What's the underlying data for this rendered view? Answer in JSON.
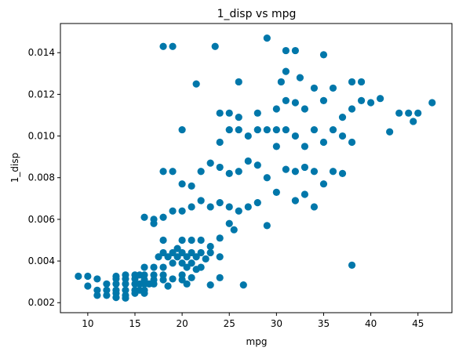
{
  "chart_data": {
    "type": "scatter",
    "title": "1_disp vs mpg",
    "xlabel": "mpg",
    "ylabel": "1_disp",
    "xlim": [
      7.1,
      48.6
    ],
    "ylim": [
      0.00152,
      0.0154
    ],
    "xticks": [
      10,
      15,
      20,
      25,
      30,
      35,
      40,
      45
    ],
    "xtick_labels": [
      "10",
      "15",
      "20",
      "25",
      "30",
      "35",
      "40",
      "45"
    ],
    "yticks": [
      0.002,
      0.004,
      0.006,
      0.008,
      0.01,
      0.012,
      0.014
    ],
    "ytick_labels": [
      "0.002",
      "0.004",
      "0.006",
      "0.008",
      "0.010",
      "0.012",
      "0.014"
    ],
    "grid": false,
    "marker_color": "#0077aa",
    "points": [
      [
        9.0,
        0.00327
      ],
      [
        10.0,
        0.00327
      ],
      [
        10.0,
        0.0028
      ],
      [
        11.0,
        0.00314
      ],
      [
        11.0,
        0.0026
      ],
      [
        11.0,
        0.00235
      ],
      [
        12.0,
        0.0029
      ],
      [
        12.0,
        0.0026
      ],
      [
        12.0,
        0.00235
      ],
      [
        13.0,
        0.00327
      ],
      [
        13.0,
        0.00314
      ],
      [
        13.0,
        0.0029
      ],
      [
        13.0,
        0.0026
      ],
      [
        13.0,
        0.00245
      ],
      [
        13.0,
        0.00225
      ],
      [
        14.0,
        0.00333
      ],
      [
        14.0,
        0.00314
      ],
      [
        14.0,
        0.0029
      ],
      [
        14.0,
        0.0026
      ],
      [
        14.0,
        0.00235
      ],
      [
        14.0,
        0.00222
      ],
      [
        15.0,
        0.00333
      ],
      [
        15.0,
        0.00314
      ],
      [
        15.0,
        0.0029
      ],
      [
        15.0,
        0.0026
      ],
      [
        15.0,
        0.00245
      ],
      [
        15.5,
        0.00333
      ],
      [
        15.5,
        0.0029
      ],
      [
        15.5,
        0.0026
      ],
      [
        16.0,
        0.00333
      ],
      [
        16.0,
        0.0031
      ],
      [
        16.0,
        0.0029
      ],
      [
        16.0,
        0.0026
      ],
      [
        16.0,
        0.00245
      ],
      [
        16.5,
        0.0029
      ],
      [
        17.0,
        0.00333
      ],
      [
        17.0,
        0.0031
      ],
      [
        17.0,
        0.0029
      ],
      [
        18.0,
        0.00333
      ],
      [
        18.0,
        0.0031
      ],
      [
        18.5,
        0.0028
      ],
      [
        19.0,
        0.00314
      ],
      [
        20.0,
        0.00333
      ],
      [
        20.0,
        0.0031
      ],
      [
        20.5,
        0.0029
      ],
      [
        21.0,
        0.0032
      ],
      [
        24.0,
        0.0032
      ],
      [
        23.0,
        0.00285
      ],
      [
        26.5,
        0.00285
      ],
      [
        16.0,
        0.0037
      ],
      [
        17.0,
        0.0037
      ],
      [
        17.5,
        0.0042
      ],
      [
        18.0,
        0.0037
      ],
      [
        18.0,
        0.0044
      ],
      [
        18.5,
        0.0042
      ],
      [
        19.0,
        0.0039
      ],
      [
        19.0,
        0.0044
      ],
      [
        19.5,
        0.0042
      ],
      [
        20.0,
        0.0039
      ],
      [
        20.0,
        0.0044
      ],
      [
        20.5,
        0.0042
      ],
      [
        21.0,
        0.0039
      ],
      [
        21.0,
        0.0044
      ],
      [
        21.5,
        0.0042
      ],
      [
        22.0,
        0.0044
      ],
      [
        22.5,
        0.0041
      ],
      [
        23.0,
        0.0044
      ],
      [
        20.5,
        0.0037
      ],
      [
        21.5,
        0.0036
      ],
      [
        22.0,
        0.0037
      ],
      [
        24.0,
        0.0042
      ],
      [
        18.0,
        0.005
      ],
      [
        19.5,
        0.0046
      ],
      [
        20.0,
        0.005
      ],
      [
        21.0,
        0.005
      ],
      [
        22.0,
        0.005
      ],
      [
        23.0,
        0.0047
      ],
      [
        24.0,
        0.0051
      ],
      [
        25.0,
        0.0058
      ],
      [
        25.5,
        0.0055
      ],
      [
        38.0,
        0.0038
      ],
      [
        16.0,
        0.0061
      ],
      [
        17.0,
        0.006
      ],
      [
        17.0,
        0.0058
      ],
      [
        18.0,
        0.0061
      ],
      [
        19.0,
        0.0064
      ],
      [
        20.0,
        0.0064
      ],
      [
        21.0,
        0.0066
      ],
      [
        22.0,
        0.0069
      ],
      [
        23.0,
        0.0066
      ],
      [
        24.0,
        0.0068
      ],
      [
        25.0,
        0.0066
      ],
      [
        26.0,
        0.0064
      ],
      [
        27.0,
        0.0066
      ],
      [
        28.0,
        0.0068
      ],
      [
        29.0,
        0.0057
      ],
      [
        30.0,
        0.0073
      ],
      [
        32.0,
        0.0069
      ],
      [
        33.0,
        0.0072
      ],
      [
        34.0,
        0.0066
      ],
      [
        18.0,
        0.0083
      ],
      [
        19.0,
        0.0083
      ],
      [
        20.0,
        0.0077
      ],
      [
        21.0,
        0.0076
      ],
      [
        22.0,
        0.0083
      ],
      [
        23.0,
        0.0087
      ],
      [
        24.0,
        0.0085
      ],
      [
        25.0,
        0.0082
      ],
      [
        26.0,
        0.0083
      ],
      [
        27.0,
        0.0088
      ],
      [
        28.0,
        0.0086
      ],
      [
        29.0,
        0.008
      ],
      [
        30.0,
        0.0095
      ],
      [
        31.0,
        0.0084
      ],
      [
        32.0,
        0.0083
      ],
      [
        33.0,
        0.0085
      ],
      [
        34.0,
        0.0083
      ],
      [
        35.0,
        0.0077
      ],
      [
        36.0,
        0.0083
      ],
      [
        37.0,
        0.0082
      ],
      [
        24.0,
        0.0097
      ],
      [
        25.0,
        0.0103
      ],
      [
        26.0,
        0.0103
      ],
      [
        27.0,
        0.01
      ],
      [
        28.0,
        0.0103
      ],
      [
        29.0,
        0.0103
      ],
      [
        30.0,
        0.0103
      ],
      [
        31.0,
        0.0103
      ],
      [
        32.0,
        0.01
      ],
      [
        33.0,
        0.0095
      ],
      [
        34.0,
        0.0103
      ],
      [
        35.0,
        0.0097
      ],
      [
        36.0,
        0.0103
      ],
      [
        37.0,
        0.01
      ],
      [
        38.0,
        0.0097
      ],
      [
        20.0,
        0.0103
      ],
      [
        24.0,
        0.0111
      ],
      [
        25.0,
        0.0111
      ],
      [
        26.0,
        0.0109
      ],
      [
        28.0,
        0.0111
      ],
      [
        30.0,
        0.0113
      ],
      [
        31.0,
        0.0117
      ],
      [
        32.0,
        0.0116
      ],
      [
        33.0,
        0.0113
      ],
      [
        35.0,
        0.0117
      ],
      [
        37.0,
        0.0109
      ],
      [
        38.0,
        0.0113
      ],
      [
        39.0,
        0.0117
      ],
      [
        40.0,
        0.0116
      ],
      [
        42.0,
        0.0102
      ],
      [
        43.0,
        0.0111
      ],
      [
        44.0,
        0.0111
      ],
      [
        44.5,
        0.0107
      ],
      [
        45.0,
        0.0111
      ],
      [
        46.5,
        0.0116
      ],
      [
        41.0,
        0.0118
      ],
      [
        38.0,
        0.0126
      ],
      [
        39.0,
        0.0126
      ],
      [
        34.0,
        0.0123
      ],
      [
        32.5,
        0.0128
      ],
      [
        30.5,
        0.0126
      ],
      [
        31.0,
        0.0131
      ],
      [
        26.0,
        0.0126
      ],
      [
        21.5,
        0.0125
      ],
      [
        18.0,
        0.0143
      ],
      [
        19.0,
        0.0143
      ],
      [
        23.5,
        0.0143
      ],
      [
        29.0,
        0.0147
      ],
      [
        31.0,
        0.0141
      ],
      [
        32.0,
        0.0141
      ],
      [
        35.0,
        0.0139
      ],
      [
        36.0,
        0.0123
      ]
    ]
  }
}
